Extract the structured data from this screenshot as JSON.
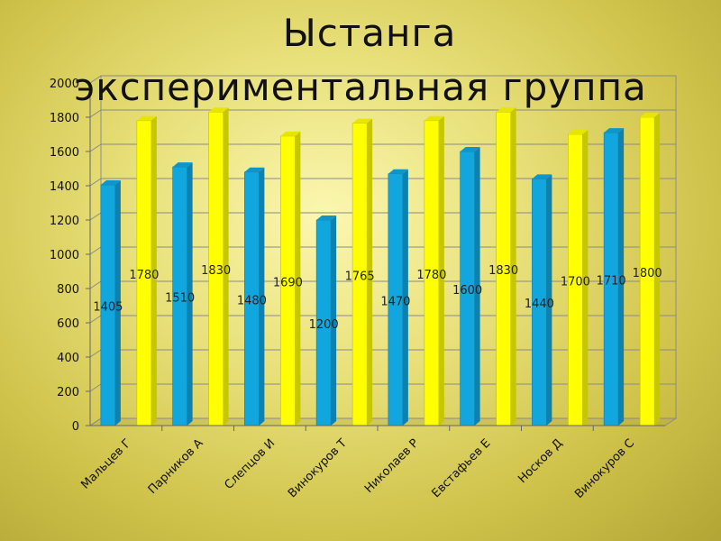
{
  "chart_data": {
    "type": "bar",
    "title_lines": [
      "Ыстанга",
      "экспериментальная группа"
    ],
    "categories": [
      "Мальцев Г",
      "Парников А",
      "Слепцов И",
      "Винокуров Т",
      "Николаев Р",
      "Евстафьев Е",
      "Носков Д",
      "Винокуров С"
    ],
    "series": [
      {
        "values": [
          1405,
          1510,
          1480,
          1200,
          1470,
          1600,
          1440,
          1710
        ],
        "color": "#12a6df"
      },
      {
        "values": [
          1780,
          1830,
          1690,
          1765,
          1780,
          1830,
          1700,
          1800
        ],
        "color": "#ffff00"
      }
    ],
    "y_ticks": [
      0,
      200,
      400,
      600,
      800,
      1000,
      1200,
      1400,
      1600,
      1800,
      2000
    ],
    "ylim": [
      0,
      2000
    ],
    "grid": true,
    "data_labels": true
  }
}
